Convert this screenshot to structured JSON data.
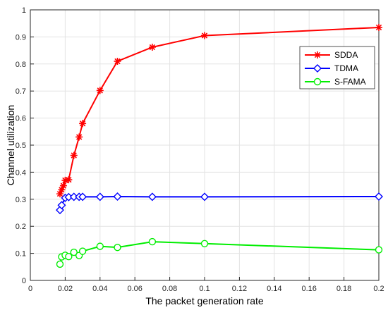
{
  "chart_data": {
    "type": "line",
    "title": "",
    "xlabel": "The packet generation rate",
    "ylabel": "Channel utilization",
    "xlim": [
      0,
      0.2
    ],
    "ylim": [
      0,
      1
    ],
    "xticks": [
      "0",
      "0.02",
      "0.04",
      "0.06",
      "0.08",
      "0.1",
      "0.12",
      "0.14",
      "0.16",
      "0.18",
      "0.2"
    ],
    "yticks": [
      "0",
      "0.1",
      "0.2",
      "0.3",
      "0.4",
      "0.5",
      "0.6",
      "0.7",
      "0.8",
      "0.9",
      "1"
    ],
    "grid": true,
    "legend_position": "top-right",
    "series": [
      {
        "name": "SDDA",
        "color": "#ff0000",
        "marker": "asterisk",
        "x": [
          0.017,
          0.018,
          0.019,
          0.02,
          0.022,
          0.025,
          0.028,
          0.03,
          0.04,
          0.05,
          0.07,
          0.1,
          0.2
        ],
        "y": [
          0.32,
          0.335,
          0.35,
          0.37,
          0.372,
          0.462,
          0.53,
          0.58,
          0.702,
          0.81,
          0.862,
          0.905,
          0.935
        ]
      },
      {
        "name": "TDMA",
        "color": "#0000ff",
        "marker": "diamond",
        "x": [
          0.017,
          0.018,
          0.02,
          0.022,
          0.025,
          0.028,
          0.03,
          0.04,
          0.05,
          0.07,
          0.1,
          0.2
        ],
        "y": [
          0.26,
          0.278,
          0.305,
          0.308,
          0.309,
          0.309,
          0.309,
          0.309,
          0.31,
          0.309,
          0.309,
          0.31
        ]
      },
      {
        "name": "S-FAMA",
        "color": "#00ee00",
        "marker": "circle",
        "x": [
          0.017,
          0.018,
          0.02,
          0.022,
          0.025,
          0.028,
          0.03,
          0.04,
          0.05,
          0.07,
          0.1,
          0.2
        ],
        "y": [
          0.06,
          0.087,
          0.093,
          0.088,
          0.104,
          0.092,
          0.108,
          0.126,
          0.122,
          0.143,
          0.136,
          0.113
        ]
      }
    ]
  }
}
